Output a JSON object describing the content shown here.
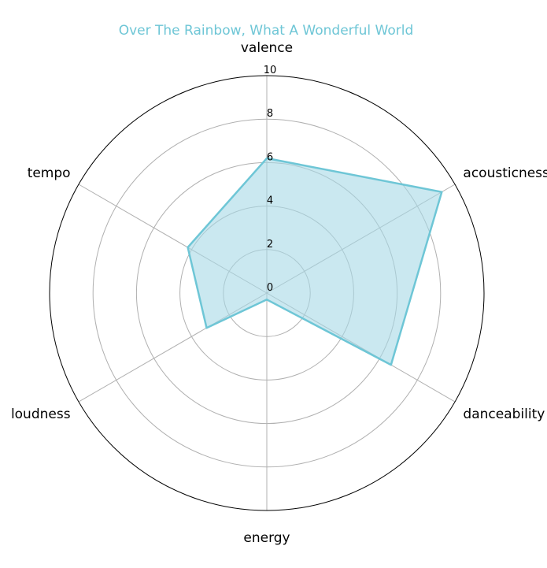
{
  "chart_data": {
    "type": "radar",
    "title": "Over The Rainbow, What A Wonderful World",
    "axes": [
      "valence",
      "acousticness",
      "danceability",
      "energy",
      "loudness",
      "tempo"
    ],
    "series": [
      {
        "values": [
          6.2,
          9.3,
          6.6,
          0.3,
          3.2,
          4.2
        ]
      }
    ],
    "rlim": [
      0,
      10
    ],
    "rticks": [
      "0",
      "2",
      "4",
      "6",
      "8",
      "10"
    ],
    "rtick_values": [
      0,
      2,
      4,
      6,
      8,
      10
    ],
    "grid": true,
    "colors": {
      "line": "#6ec6d6",
      "fill": "#a6d9e6",
      "grid": "#b0b0b0",
      "frame": "#000000"
    }
  }
}
